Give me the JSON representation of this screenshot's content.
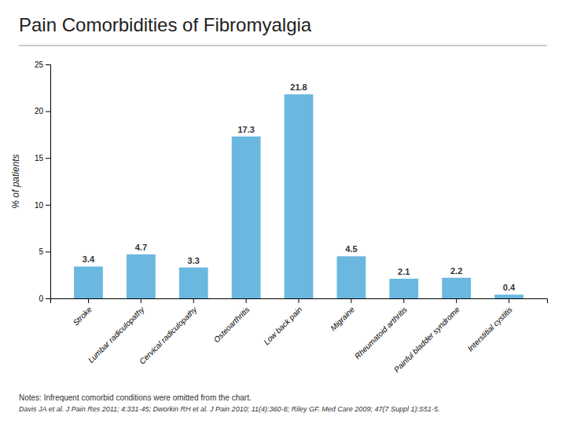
{
  "chart_data": {
    "type": "bar",
    "title": "Pain Comorbidities of Fibromyalgia",
    "categories": [
      "Stroke",
      "Lumbar radiculopathy",
      "Cervical radiculopathy",
      "Osteoarthritis",
      "Low back pain",
      "Migraine",
      "Rheumatoid arthritis",
      "Painful bladder syndrome",
      "Interstitial cystitis"
    ],
    "values": [
      3.4,
      4.7,
      3.3,
      17.3,
      21.8,
      4.5,
      2.1,
      2.2,
      0.4
    ],
    "color": "#6ab8e0",
    "ylabel": "% of patients",
    "ylim": [
      0,
      25
    ],
    "yticks": [
      0,
      5,
      10,
      15,
      20,
      25
    ],
    "grid": false,
    "data_labels": true,
    "annotations": [
      "Notes: Infrequent comorbid conditions were omitted from the chart.",
      "Davis JA et al. J Pain Res 2011; 4:331-45; Dworkin RH et al. J Pain 2010; 11(4):360-8; Riley GF. Med Care 2009; 47(7 Suppl 1):S51-5."
    ]
  }
}
